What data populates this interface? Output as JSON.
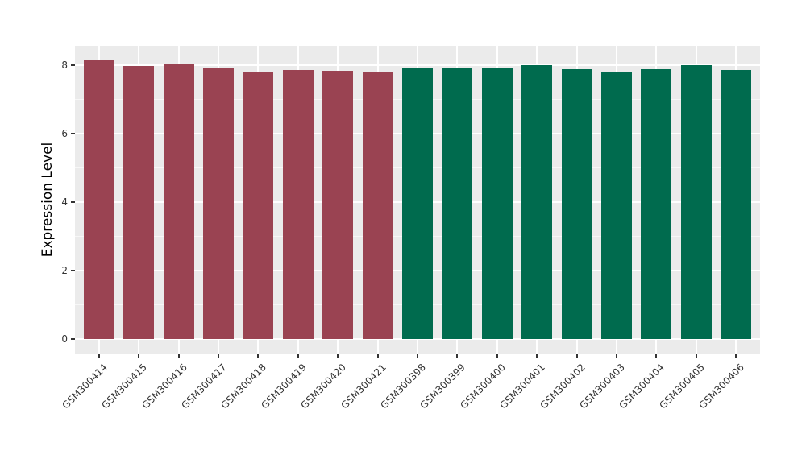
{
  "figure": {
    "background": "#FFFFFF",
    "panel_background": "#EBEBEB",
    "grid_major_color": "#FFFFFF",
    "grid_minor_color": "#F7F7F7",
    "axis_text_color": "#333333",
    "axis_title_color": "#000000"
  },
  "yaxis": {
    "title": "Expression Level",
    "tick_labels": [
      "0",
      "2",
      "4",
      "6",
      "8"
    ]
  },
  "chart_data": {
    "type": "bar",
    "title": "",
    "xlabel": "",
    "ylabel": "Expression Level",
    "ylim": [
      0,
      8.57
    ],
    "yticks": [
      0,
      2,
      4,
      6,
      8
    ],
    "yminor": [
      1,
      3,
      5,
      7
    ],
    "grid": "on",
    "legend": "none",
    "group_colors": {
      "maroon_group": "#9A4352",
      "green_group": "#006B4E"
    },
    "categories": [
      "GSM300414",
      "GSM300415",
      "GSM300416",
      "GSM300417",
      "GSM300418",
      "GSM300419",
      "GSM300420",
      "GSM300421",
      "GSM300398",
      "GSM300399",
      "GSM300400",
      "GSM300401",
      "GSM300402",
      "GSM300403",
      "GSM300404",
      "GSM300405",
      "GSM300406"
    ],
    "values": [
      8.17,
      7.98,
      8.02,
      7.93,
      7.83,
      7.86,
      7.84,
      7.83,
      7.92,
      7.94,
      7.92,
      8.01,
      7.9,
      7.79,
      7.9,
      8.0,
      7.87
    ],
    "bars": [
      {
        "label": "GSM300414",
        "value": 8.17,
        "color": "#9A4352"
      },
      {
        "label": "GSM300415",
        "value": 7.98,
        "color": "#9A4352"
      },
      {
        "label": "GSM300416",
        "value": 8.02,
        "color": "#9A4352"
      },
      {
        "label": "GSM300417",
        "value": 7.93,
        "color": "#9A4352"
      },
      {
        "label": "GSM300418",
        "value": 7.83,
        "color": "#9A4352"
      },
      {
        "label": "GSM300419",
        "value": 7.86,
        "color": "#9A4352"
      },
      {
        "label": "GSM300420",
        "value": 7.84,
        "color": "#9A4352"
      },
      {
        "label": "GSM300421",
        "value": 7.83,
        "color": "#9A4352"
      },
      {
        "label": "GSM300398",
        "value": 7.92,
        "color": "#006B4E"
      },
      {
        "label": "GSM300399",
        "value": 7.94,
        "color": "#006B4E"
      },
      {
        "label": "GSM300400",
        "value": 7.92,
        "color": "#006B4E"
      },
      {
        "label": "GSM300401",
        "value": 8.01,
        "color": "#006B4E"
      },
      {
        "label": "GSM300402",
        "value": 7.9,
        "color": "#006B4E"
      },
      {
        "label": "GSM300403",
        "value": 7.79,
        "color": "#006B4E"
      },
      {
        "label": "GSM300404",
        "value": 7.9,
        "color": "#006B4E"
      },
      {
        "label": "GSM300405",
        "value": 8.0,
        "color": "#006B4E"
      },
      {
        "label": "GSM300406",
        "value": 7.87,
        "color": "#006B4E"
      }
    ]
  }
}
